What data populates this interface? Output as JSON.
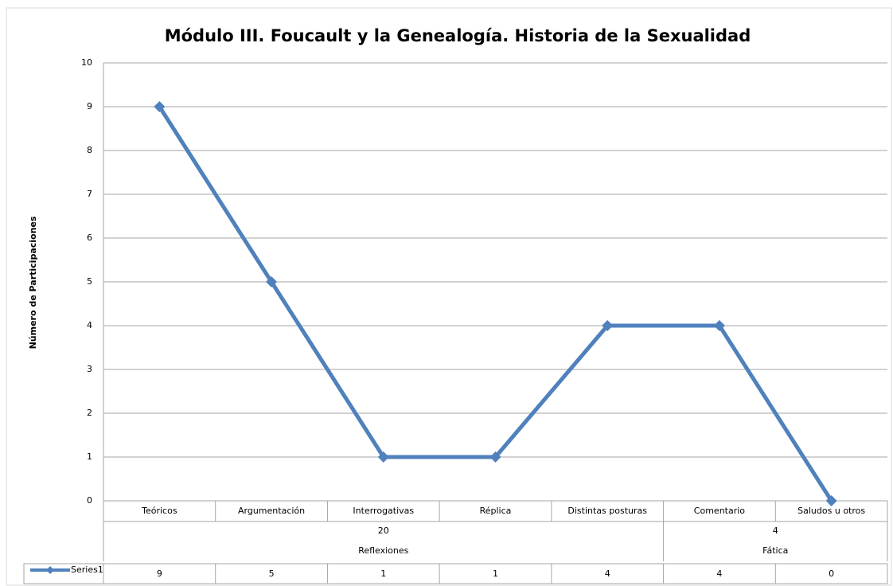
{
  "chart_data": {
    "type": "line",
    "title": "Módulo III. Foucault y la Genealogía. Historia de la Sexualidad",
    "y_label": "Número de Participaciones",
    "categories": [
      "Teóricos",
      "Argumentación",
      "Interrogativas",
      "Réplica",
      "Distintas posturas",
      "Comentario",
      "Saludos u otros"
    ],
    "groups": [
      {
        "name": "Reflexiones",
        "total": 20,
        "size": 5
      },
      {
        "name": "Fática",
        "total": 4,
        "size": 2
      }
    ],
    "series": [
      {
        "name": "Series1",
        "color": "#4f81bd",
        "values": [
          9,
          5,
          1,
          1,
          4,
          4,
          0
        ]
      }
    ],
    "ylim": [
      0,
      10
    ],
    "yticks": [
      0,
      1,
      2,
      3,
      4,
      5,
      6,
      7,
      8,
      9,
      10
    ],
    "grid": true,
    "data_table": true
  }
}
